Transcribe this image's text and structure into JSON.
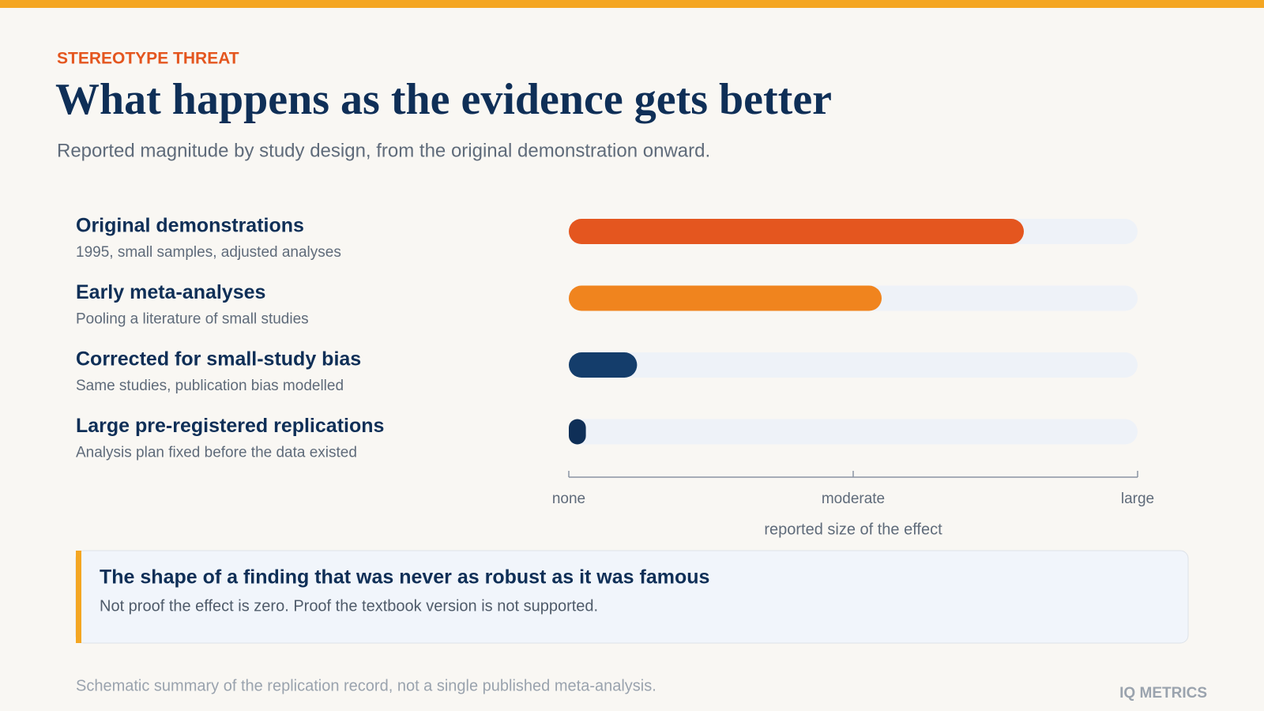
{
  "kicker": "STEREOTYPE THREAT",
  "chart_data": {
    "type": "bar",
    "orientation": "horizontal",
    "title": "What happens as the evidence gets better",
    "subtitle": "Reported magnitude by study design, from the original demonstration onward.",
    "categories": [
      "Original demonstrations",
      "Early meta-analyses",
      "Corrected for small-study bias",
      "Large pre-registered replications"
    ],
    "descriptions": [
      "1995, small samples, adjusted analyses",
      "Pooling a literature of small studies",
      "Same studies, publication bias modelled",
      "Analysis plan fixed before the data existed"
    ],
    "values": [
      0.8,
      0.55,
      0.12,
      0.03
    ],
    "colors": [
      "#e4561f",
      "#f0841e",
      "#143d6b",
      "#0f2f57"
    ],
    "xlim": [
      0,
      1
    ],
    "xticks": [
      {
        "value": 0,
        "label": "none"
      },
      {
        "value": 0.5,
        "label": "moderate"
      },
      {
        "value": 1,
        "label": "large"
      }
    ],
    "xlabel": "reported size of the effect"
  },
  "callout": {
    "title": "The shape of a finding that was never as robust as it was famous",
    "text": "Not proof the effect is zero. Proof the textbook version is not supported."
  },
  "footer": "Schematic summary of the replication record, not a single published meta-analysis.",
  "brand": "IQ METRICS"
}
